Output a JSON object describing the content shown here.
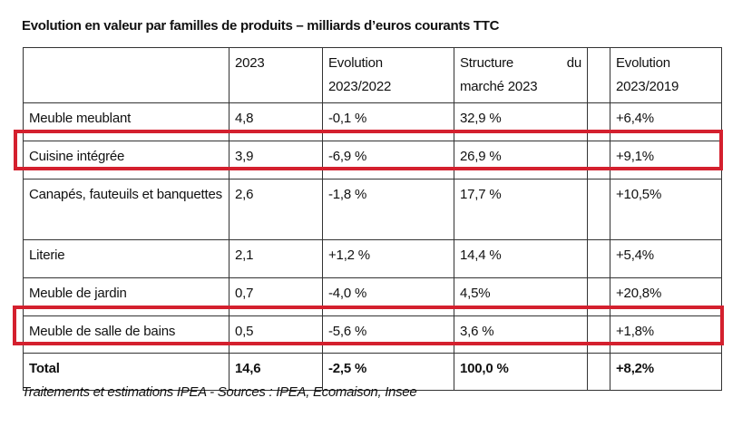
{
  "title": "Evolution en valeur par familles de produits – milliards d’euros courants TTC",
  "table": {
    "headers": [
      "",
      "2023",
      "Evolution 2023/2022",
      "Structure du marché 2023",
      "",
      "Evolution 2023/2019"
    ],
    "header_parts": {
      "evo2022_line1": "Evolution",
      "evo2022_line2": "2023/2022",
      "struct_word1": "Structure",
      "struct_word2": "du",
      "struct_line2": "marché 2023",
      "evo2019_line1": "Evolution",
      "evo2019_line2": "2023/2019"
    },
    "rows": [
      {
        "label": "Meuble meublant",
        "v2023": "4,8",
        "evo2022": "-0,1 %",
        "structure": "32,9 %",
        "evo2019": "+6,4%",
        "highlighted": false
      },
      {
        "label": "Cuisine intégrée",
        "v2023": "3,9",
        "evo2022": "-6,9 %",
        "structure": "26,9 %",
        "evo2019": "+9,1%",
        "highlighted": true
      },
      {
        "label": "Canapés, fauteuils et banquettes",
        "v2023": "2,6",
        "evo2022": "-1,8 %",
        "structure": "17,7 %",
        "evo2019": "+10,5%",
        "highlighted": false
      },
      {
        "label": "Literie",
        "v2023": "2,1",
        "evo2022": "+1,2 %",
        "structure": "14,4 %",
        "evo2019": "+5,4%",
        "highlighted": false
      },
      {
        "label": "Meuble de jardin",
        "v2023": "0,7",
        "evo2022": "-4,0 %",
        "structure": "4,5%",
        "evo2019": "+20,8%",
        "highlighted": false
      },
      {
        "label": "Meuble de salle de bains",
        "v2023": "0,5",
        "evo2022": "-5,6 %",
        "structure": "3,6 %",
        "evo2019": "+1,8%",
        "highlighted": true
      }
    ],
    "total": {
      "label": "Total",
      "v2023": "14,6",
      "evo2022": "-2,5 %",
      "structure": "100,0 %",
      "evo2019": "+8,2%"
    }
  },
  "caption": "Traitements et estimations IPEA - Sources : IPEA, Ecomaison, Insee",
  "colors": {
    "highlight": "#d4202e",
    "border": "#333333"
  }
}
